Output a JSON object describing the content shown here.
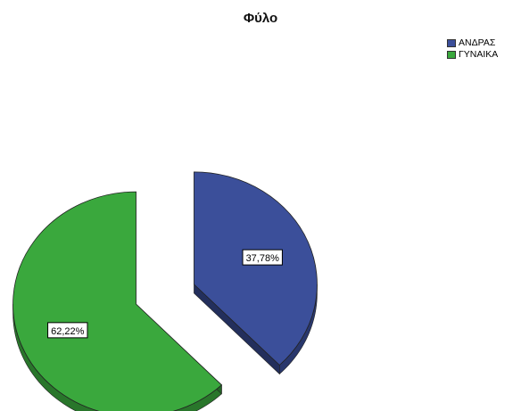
{
  "chart_data": {
    "type": "pie",
    "title": "Φύλο",
    "exploded": true,
    "three_d": true,
    "legend_position": "top-right",
    "slices": [
      {
        "label": "ΑΝΔΡΑΣ",
        "value": 37.78,
        "display": "37,78%",
        "color": "#3b4f9a"
      },
      {
        "label": "ΓΥΝΑΙΚΑ",
        "value": 62.22,
        "display": "62,22%",
        "color": "#3aa83d"
      }
    ]
  }
}
